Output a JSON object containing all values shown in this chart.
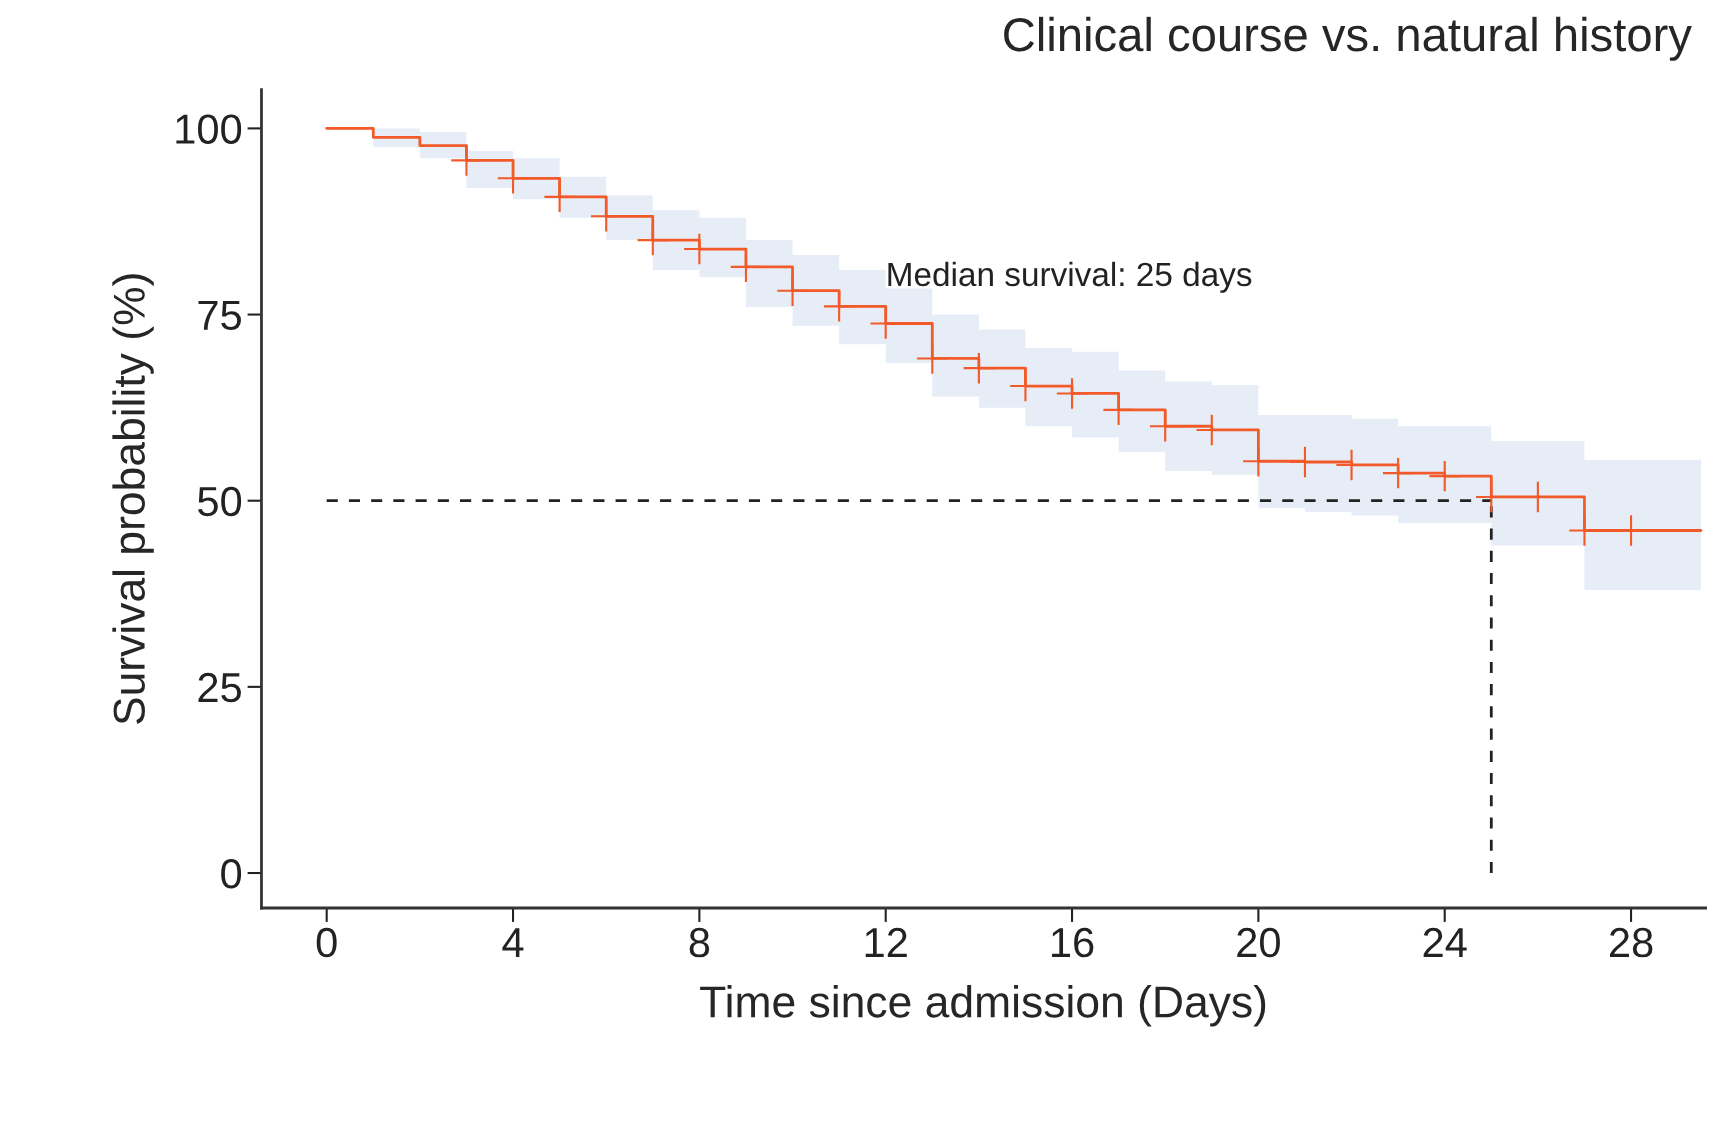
{
  "chart_data": {
    "type": "step",
    "title": "Clinical course vs. natural history",
    "xlabel": "Time since admission (Days)",
    "ylabel": "Survival probability (%)",
    "annotations": [
      {
        "text": "Median survival: 25 days",
        "x": 12,
        "y": 80
      }
    ],
    "series": [
      {
        "type": "step",
        "color": "#f25a2a",
        "marker": "none",
        "x": [
          0,
          1,
          2,
          3,
          4,
          5,
          6,
          7,
          8,
          9,
          10,
          11,
          12,
          13,
          14,
          15,
          16,
          17,
          18,
          19,
          20,
          21,
          22,
          23,
          24,
          25,
          26,
          27,
          29.5
        ],
        "values": [
          100,
          98.8,
          97.7,
          95.7,
          93.3,
          90.8,
          88.2,
          85.0,
          83.8,
          81.4,
          78.2,
          76.1,
          73.8,
          69.1,
          67.8,
          65.4,
          64.4,
          62.2,
          60.0,
          59.5,
          55.3,
          55.2,
          54.8,
          53.7,
          53.3,
          50.5,
          50.5,
          46.0,
          46.0
        ],
        "lower": [
          100,
          97.5,
          96,
          92,
          90.5,
          88,
          85,
          81,
          80,
          76,
          73.5,
          71,
          68.5,
          64,
          62.5,
          60,
          58.5,
          56.5,
          54,
          53.5,
          49,
          48.5,
          48,
          47,
          47,
          44,
          44,
          38,
          38
        ],
        "upper": [
          100,
          100,
          99.5,
          97,
          96,
          93.5,
          91,
          89,
          88,
          85,
          83,
          81,
          78.5,
          75,
          73,
          70.5,
          70,
          67.5,
          66,
          65.5,
          61.5,
          61.5,
          61,
          60,
          60,
          58,
          58,
          55.5,
          55.5
        ]
      },
      {
        "type": "scatter",
        "color": "#f25a2a",
        "marker": "cross",
        "x": [
          3,
          4,
          5,
          6,
          7,
          8,
          9,
          10,
          11,
          12,
          13,
          14,
          15,
          16,
          17,
          18,
          19,
          20,
          21,
          22,
          23,
          24,
          25,
          26,
          27,
          28
        ],
        "values": [
          95.7,
          93.3,
          90.8,
          88.2,
          85.0,
          83.8,
          81.4,
          78.2,
          76.1,
          73.8,
          69.1,
          67.8,
          65.4,
          64.4,
          62.2,
          60.0,
          59.5,
          55.3,
          55.2,
          54.8,
          53.7,
          53.3,
          50.5,
          50.5,
          46.0,
          46.0
        ]
      }
    ],
    "ref_lines": [
      {
        "axis": "y",
        "value": 50,
        "line_style": "dashed",
        "color": "#222222"
      },
      {
        "axis": "x",
        "value": 25,
        "line_style": "dashed",
        "color": "#222222"
      }
    ],
    "xlim": [
      -1.4,
      29.6
    ],
    "ylim": [
      -4.7,
      105.2
    ],
    "xticks": [
      0,
      4,
      8,
      12,
      16,
      20,
      24,
      28
    ],
    "yticks": [
      0,
      25,
      50,
      75,
      100
    ],
    "grid": false,
    "legend": false
  }
}
